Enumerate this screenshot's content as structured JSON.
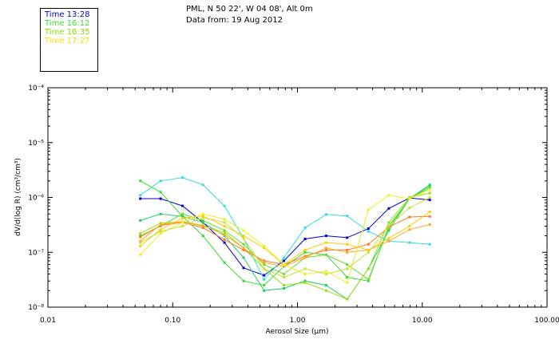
{
  "header": {
    "location": "PML, N 50 22', W 04 08', Alt 0m",
    "data_from": "Data from: 19 Aug 2012"
  },
  "legend": [
    {
      "label": "Time 13:28",
      "color": "#0000cc"
    },
    {
      "label": "Time 16:12",
      "color": "#33dd33"
    },
    {
      "label": "Time 16:35",
      "color": "#88dd00"
    },
    {
      "label": "Time 17:27",
      "color": "#ffdd00"
    }
  ],
  "chart_data": {
    "type": "line",
    "title": "",
    "xlabel": "Aerosol Size (μm)",
    "ylabel": "dV/d(log R) (cm³/cm³)",
    "x_scale": "log",
    "y_scale": "log",
    "xlim": [
      0.01,
      100
    ],
    "ylim": [
      1e-08,
      0.0001
    ],
    "x_ticks": [
      "0.01",
      "0.10",
      "1.00",
      "10.00",
      "100.00"
    ],
    "y_ticks": [
      "10⁻⁸",
      "10⁻⁷",
      "10⁻⁶",
      "10⁻⁵",
      "10⁻⁴"
    ],
    "x": [
      0.055,
      0.08,
      0.12,
      0.175,
      0.26,
      0.37,
      0.54,
      0.78,
      1.15,
      1.7,
      2.5,
      3.7,
      5.4,
      7.9,
      11.5
    ],
    "series": [
      {
        "color": "#0000cc",
        "values": [
          9.5e-07,
          9.5e-07,
          7e-07,
          3.5e-07,
          1.5e-07,
          5.2e-08,
          3.8e-08,
          7e-08,
          1.75e-07,
          2e-07,
          1.85e-07,
          2.7e-07,
          6.3e-07,
          9.8e-07,
          9e-07
        ]
      },
      {
        "color": "#33dddd",
        "values": [
          1.1e-06,
          2e-06,
          2.3e-06,
          1.7e-06,
          7e-07,
          1.8e-07,
          3.2e-08,
          8e-08,
          2.8e-07,
          4.9e-07,
          4.6e-07,
          2.4e-07,
          1.6e-07,
          1.5e-07,
          1.4e-07
        ]
      },
      {
        "color": "#33dd33",
        "values": [
          2e-06,
          1.25e-06,
          4.5e-07,
          2e-07,
          6.5e-08,
          3e-08,
          2.5e-08,
          5.5e-08,
          1e-07,
          9e-08,
          3.5e-08,
          3e-08,
          3e-07,
          9.5e-07,
          1.6e-06
        ]
      },
      {
        "color": "#22cc66",
        "values": [
          3.8e-07,
          5e-07,
          4.5e-07,
          3.5e-07,
          2e-07,
          8e-08,
          2e-08,
          2.2e-08,
          3e-08,
          2.5e-08,
          1.4e-08,
          5e-08,
          2.5e-07,
          9.5e-07,
          1.7e-06
        ]
      },
      {
        "color": "#66dd22",
        "values": [
          2e-07,
          3e-07,
          5e-07,
          3.8e-07,
          2.5e-07,
          1.4e-07,
          6e-08,
          4e-08,
          8e-08,
          9e-08,
          6e-08,
          3.2e-08,
          2.8e-07,
          9.5e-07,
          1.5e-06
        ]
      },
      {
        "color": "#99dd11",
        "values": [
          2.2e-07,
          3.4e-07,
          3.6e-07,
          3e-07,
          2.3e-07,
          1.2e-07,
          5e-08,
          2.5e-08,
          2.8e-08,
          2e-08,
          1.4e-08,
          5e-08,
          3.5e-07,
          1e-06,
          1.2e-06
        ]
      },
      {
        "color": "#ff7722",
        "values": [
          1.9e-07,
          3.1e-07,
          3.5e-07,
          2.8e-07,
          1.7e-07,
          1.1e-07,
          7e-08,
          6e-08,
          8.5e-08,
          1.1e-07,
          1.1e-07,
          1.4e-07,
          2.9e-07,
          4.4e-07,
          4.5e-07
        ]
      },
      {
        "color": "#ffaa22",
        "values": [
          1.6e-07,
          3.2e-07,
          3.6e-07,
          3.1e-07,
          2.1e-07,
          1.2e-07,
          6.5e-08,
          5.5e-08,
          8e-08,
          1.2e-07,
          1e-07,
          1.1e-07,
          1.6e-07,
          2.6e-07,
          3.2e-07
        ]
      },
      {
        "color": "#ffcc00",
        "values": [
          1.3e-07,
          2.6e-07,
          4.2e-07,
          4.6e-07,
          3e-07,
          2e-07,
          1.2e-07,
          6e-08,
          1.1e-07,
          1.5e-07,
          1.4e-07,
          1.1e-07,
          1.8e-07,
          3e-07,
          5.5e-07
        ]
      },
      {
        "color": "#eeee22",
        "values": [
          9e-08,
          2.2e-07,
          3.5e-07,
          5e-07,
          4e-07,
          2.5e-07,
          1.3e-07,
          6e-08,
          4e-08,
          4.5e-08,
          2.8e-08,
          6e-07,
          1.1e-06,
          9.5e-07,
          1.4e-06
        ]
      },
      {
        "color": "#ccdd33",
        "values": [
          1.5e-07,
          2.4e-07,
          3e-07,
          4.3e-07,
          3.5e-07,
          1.8e-07,
          5e-08,
          3.5e-08,
          5e-08,
          4e-08,
          5e-08,
          1e-07,
          3e-07,
          6.5e-07,
          1e-06
        ]
      }
    ]
  }
}
